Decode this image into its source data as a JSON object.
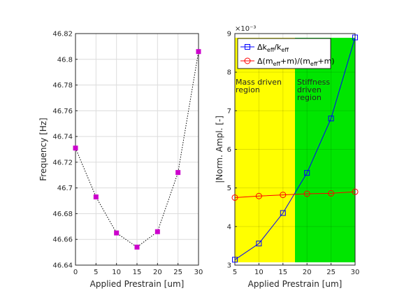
{
  "chart_data": [
    {
      "type": "line",
      "xlabel": "Applied Prestrain [um]",
      "ylabel": "Frequency [Hz]",
      "xlim": [
        0,
        30
      ],
      "ylim": [
        46.64,
        46.82
      ],
      "x_ticks": [
        "0",
        "5",
        "10",
        "15",
        "20",
        "25",
        "30"
      ],
      "y_ticks": [
        "46.64",
        "46.66",
        "46.68",
        "46.7",
        "46.72",
        "46.74",
        "46.76",
        "46.78",
        "46.8",
        "46.82"
      ],
      "grid": true,
      "series": [
        {
          "x": [
            0,
            5,
            10,
            15,
            20,
            25,
            30
          ],
          "y": [
            46.731,
            46.693,
            46.665,
            46.654,
            46.666,
            46.712,
            46.806
          ],
          "color": "#cc00cc",
          "line": "dotted-black",
          "marker": "square"
        }
      ]
    },
    {
      "type": "line",
      "xlabel": "Applied Prestrain [um]",
      "ylabel": "|Norm. Ampl. [-]",
      "xlim": [
        5,
        30
      ],
      "ylim": [
        3,
        9
      ],
      "y_exponent": "×10⁻³",
      "x_ticks": [
        "5",
        "10",
        "15",
        "20",
        "25",
        "30"
      ],
      "y_ticks": [
        "3",
        "4",
        "5",
        "6",
        "7",
        "8",
        "9"
      ],
      "grid": true,
      "legend_position": "top-left",
      "regions": [
        {
          "label_lines": [
            "Mass driven",
            "region"
          ],
          "x0": 5,
          "x1": 17.5,
          "color": "#ffff00"
        },
        {
          "label_lines": [
            "Stiffness",
            "driven",
            "region"
          ],
          "x0": 17.5,
          "x1": 30,
          "color": "#00e600"
        }
      ],
      "series": [
        {
          "name": "Δk_eff/k_eff",
          "x": [
            5,
            10,
            15,
            20,
            25,
            30
          ],
          "y": [
            3.14,
            3.56,
            4.35,
            5.39,
            6.8,
            8.9
          ],
          "color": "#0000ff",
          "marker": "square"
        },
        {
          "name": "Δ(m_eff+m)/(m_eff+m)",
          "x": [
            5,
            10,
            15,
            20,
            25,
            30
          ],
          "y": [
            4.75,
            4.79,
            4.82,
            4.85,
            4.86,
            4.9
          ],
          "color": "#ff0000",
          "marker": "circle"
        }
      ]
    }
  ]
}
